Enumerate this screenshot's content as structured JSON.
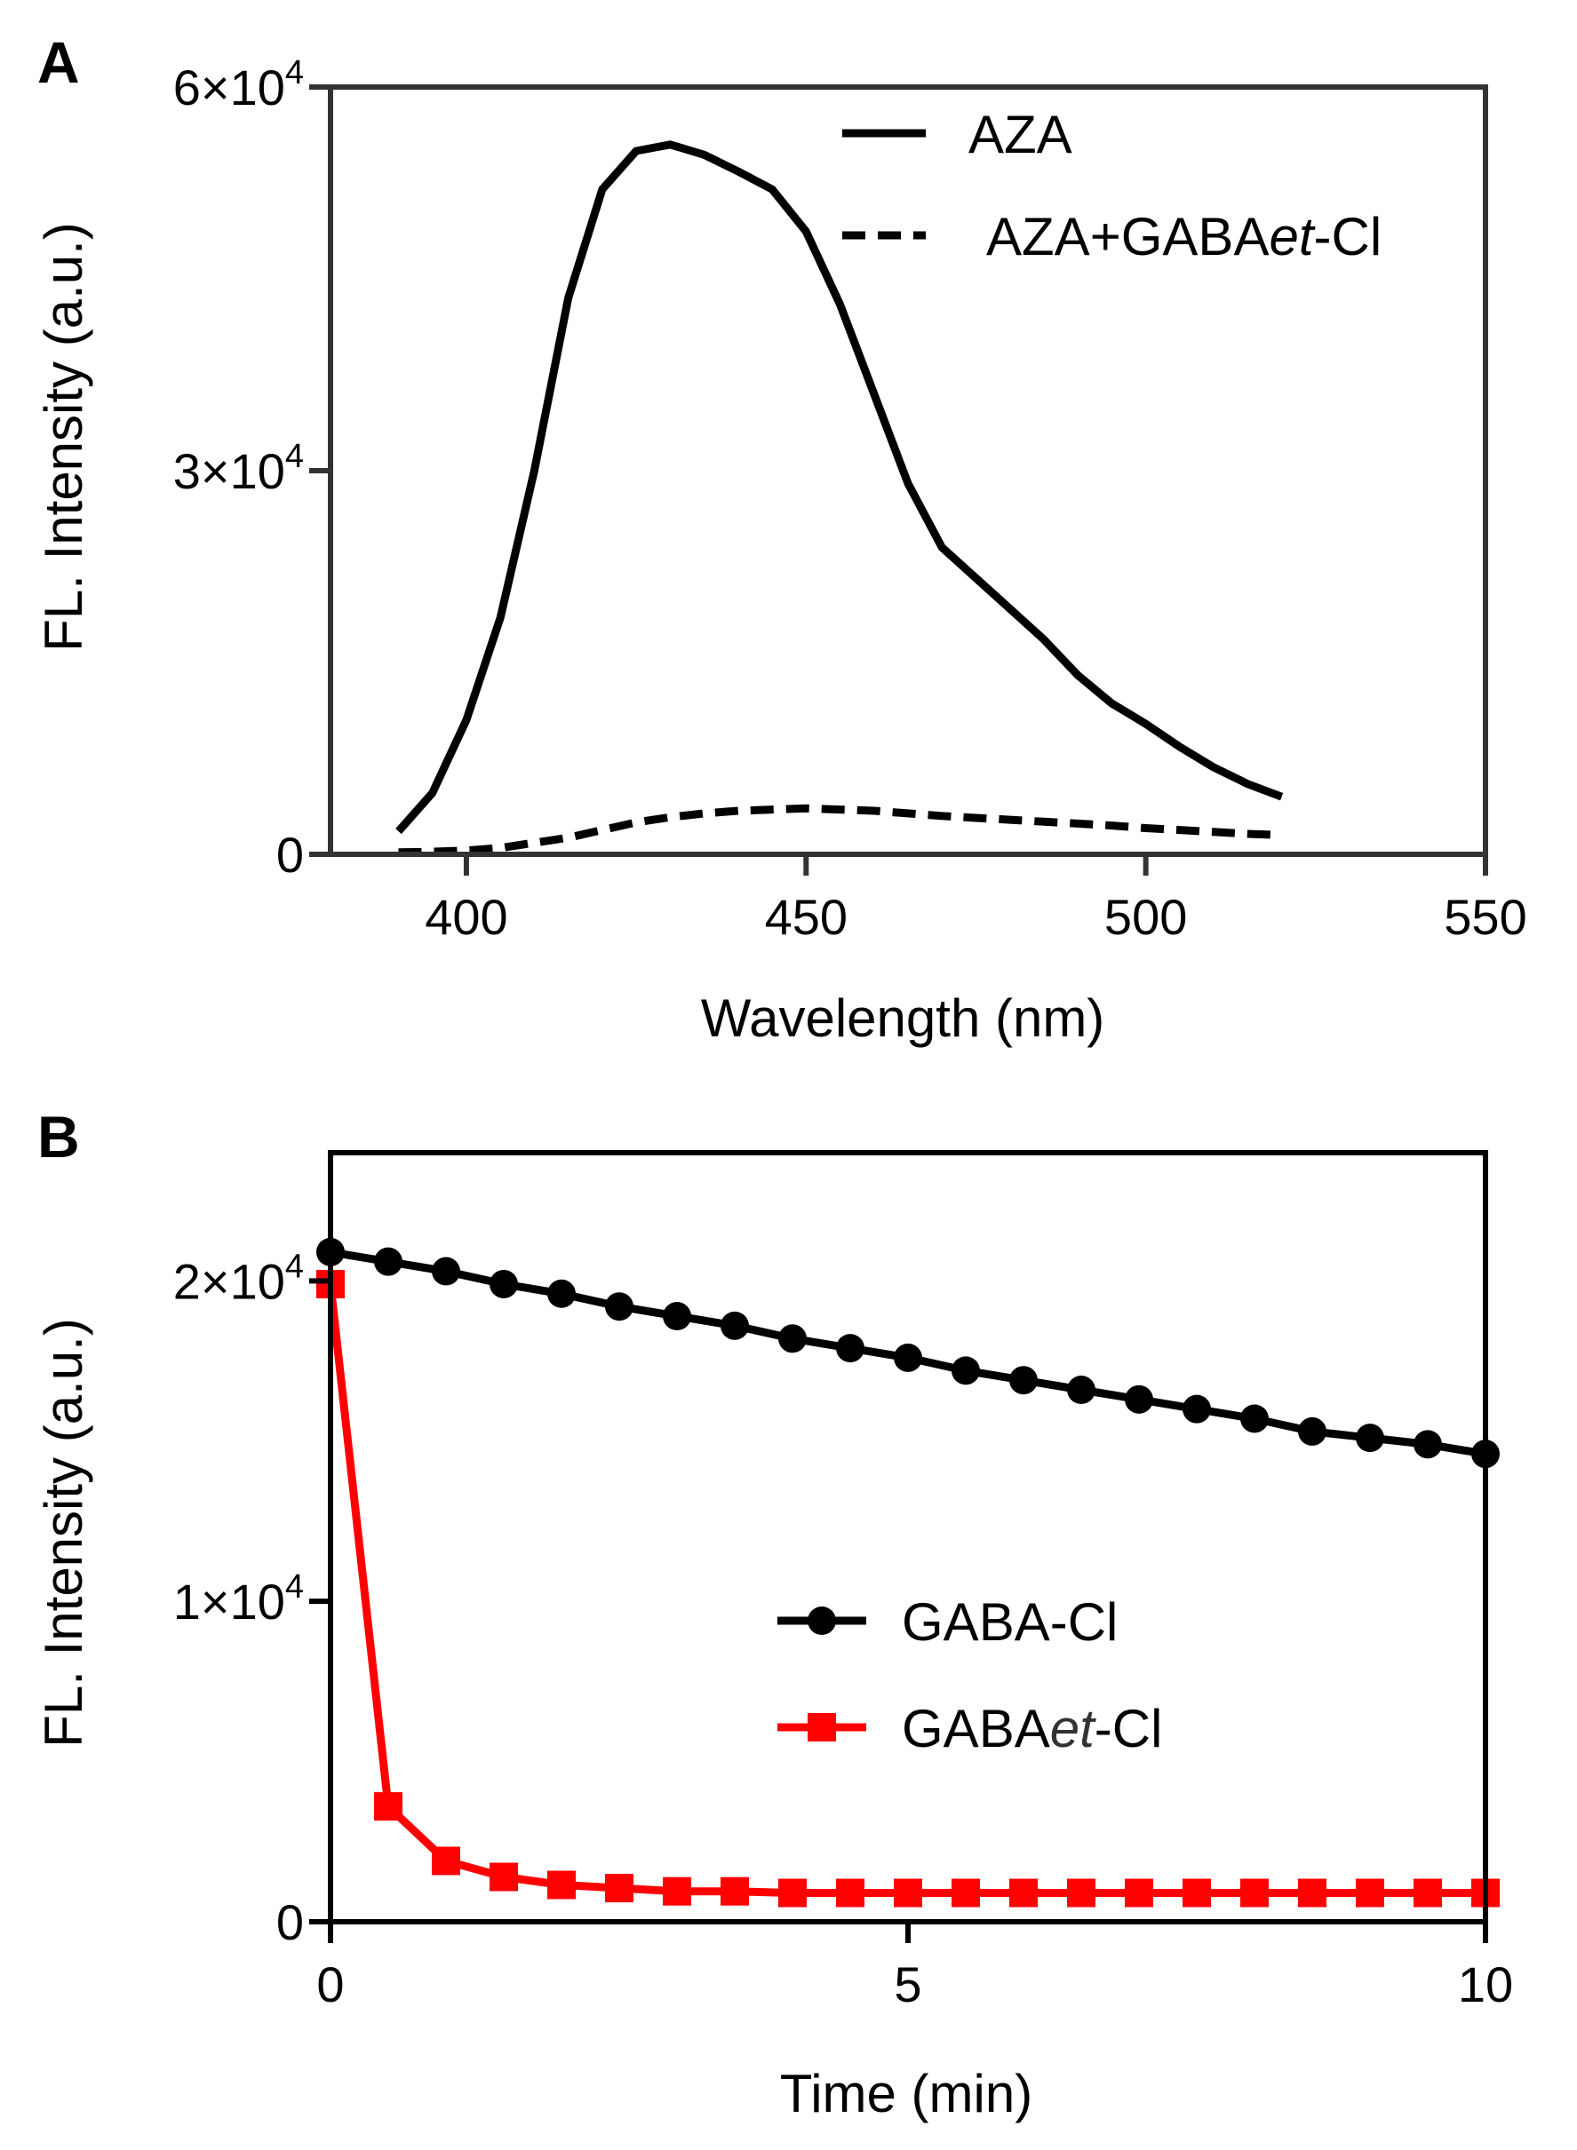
{
  "figure": {
    "panels": [
      "A",
      "B"
    ]
  },
  "chart_data": [
    {
      "panel": "A",
      "type": "line",
      "xlabel": "Wavelength (nm)",
      "ylabel": "FL. Intensity  (a.u.)",
      "xlim": [
        380,
        550
      ],
      "ylim": [
        0,
        60000
      ],
      "xticks": [
        400,
        450,
        500,
        550
      ],
      "yticks": [
        0,
        30000,
        60000
      ],
      "ytick_labels": [
        {
          "value": 0,
          "mantissa": "0",
          "exp": ""
        },
        {
          "value": 30000,
          "mantissa": "3×10",
          "exp": "4"
        },
        {
          "value": 60000,
          "mantissa": "6×10",
          "exp": "4"
        }
      ],
      "legend_position": "top-right",
      "series": [
        {
          "name": "AZA",
          "legend_label": "AZA",
          "style": "solid",
          "color": "#000000",
          "x": [
            390,
            395,
            400,
            405,
            410,
            415,
            420,
            425,
            430,
            435,
            440,
            445,
            450,
            455,
            460,
            465,
            470,
            475,
            480,
            485,
            490,
            495,
            500,
            505,
            510,
            515,
            520
          ],
          "y": [
            1800,
            4800,
            10500,
            18500,
            30000,
            43500,
            52000,
            55000,
            55500,
            54700,
            53400,
            52000,
            48700,
            43000,
            36000,
            29000,
            24000,
            21600,
            19200,
            16800,
            14000,
            11800,
            10200,
            8400,
            6800,
            5500,
            4500
          ]
        },
        {
          "name": "AZA+GABAet-Cl",
          "legend_label": "AZA+GABA",
          "legend_label_italic": "et",
          "legend_label_suffix": "-Cl",
          "style": "dashed",
          "color": "#000000",
          "x": [
            390,
            395,
            400,
            405,
            410,
            415,
            420,
            425,
            430,
            435,
            440,
            445,
            450,
            455,
            460,
            465,
            470,
            475,
            480,
            485,
            490,
            495,
            500,
            505,
            510,
            515,
            520
          ],
          "y": [
            150,
            200,
            300,
            500,
            900,
            1300,
            1900,
            2500,
            2900,
            3200,
            3400,
            3500,
            3600,
            3500,
            3400,
            3200,
            3000,
            2850,
            2700,
            2550,
            2400,
            2250,
            2050,
            1900,
            1750,
            1600,
            1500
          ]
        }
      ]
    },
    {
      "panel": "B",
      "type": "line",
      "xlabel": "Time (min)",
      "ylabel": "FL. Intensity  (a.u.)",
      "xlim": [
        0,
        10
      ],
      "ylim": [
        0,
        24000
      ],
      "xticks": [
        0,
        5,
        10
      ],
      "yticks": [
        0,
        10000,
        20000
      ],
      "ytick_labels": [
        {
          "value": 0,
          "mantissa": "0",
          "exp": ""
        },
        {
          "value": 10000,
          "mantissa": "1×10",
          "exp": "4"
        },
        {
          "value": 20000,
          "mantissa": "2×10",
          "exp": "4"
        }
      ],
      "legend_position": "center-right",
      "series": [
        {
          "name": "GABA-Cl",
          "legend_label": "GABA-Cl",
          "marker": "circle",
          "color": "#000000",
          "x": [
            0,
            0.5,
            1,
            1.5,
            2,
            2.5,
            3,
            3.5,
            4,
            4.5,
            5,
            5.5,
            6,
            6.5,
            7,
            7.5,
            8,
            8.5,
            9,
            9.5,
            10
          ],
          "y": [
            20900,
            20600,
            20300,
            19900,
            19600,
            19200,
            18900,
            18600,
            18200,
            17900,
            17600,
            17200,
            16900,
            16600,
            16300,
            16000,
            15700,
            15300,
            15100,
            14900,
            14600
          ]
        },
        {
          "name": "GABAet-Cl",
          "legend_label": "GABA",
          "legend_label_italic": "et",
          "legend_label_suffix": "-Cl",
          "marker": "square",
          "color": "#ff0000",
          "x": [
            0,
            0.5,
            1,
            1.5,
            2,
            2.5,
            3,
            3.5,
            4,
            4.5,
            5,
            5.5,
            6,
            6.5,
            7,
            7.5,
            8,
            8.5,
            9,
            9.5,
            10
          ],
          "y": [
            19900,
            3600,
            1900,
            1400,
            1150,
            1050,
            950,
            950,
            900,
            900,
            900,
            900,
            900,
            900,
            900,
            900,
            900,
            900,
            900,
            900,
            900
          ]
        }
      ]
    }
  ]
}
